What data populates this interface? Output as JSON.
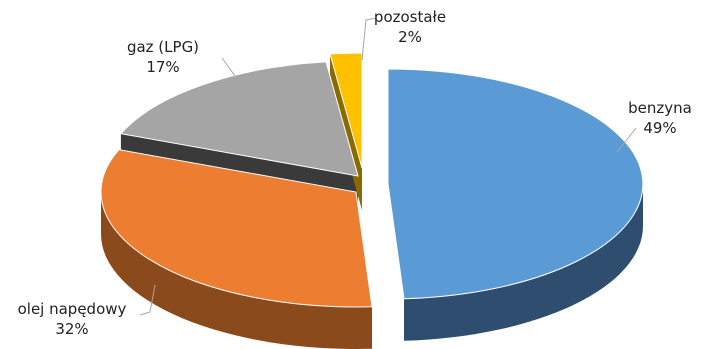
{
  "chart_data": {
    "type": "pie",
    "title": "",
    "slices": [
      {
        "label": "benzyna",
        "value": 49,
        "pct": "49%",
        "color": "#5b9bd5",
        "side_color": "#2f4e6f"
      },
      {
        "label": "olej napędowy",
        "value": 32,
        "pct": "32%",
        "color": "#ed7d31",
        "side_color": "#8a4a1c"
      },
      {
        "label": "gaz (LPG)",
        "value": 17,
        "pct": "17%",
        "color": "#a5a5a5",
        "side_color": "#3a3a3a"
      },
      {
        "label": "pozostałe",
        "value": 2,
        "pct": "2%",
        "color": "#ffc000",
        "side_color": "#8a6a00"
      }
    ],
    "legend": "none",
    "data_labels": "outside-with-leader-lines",
    "style": "3d-exploded"
  }
}
